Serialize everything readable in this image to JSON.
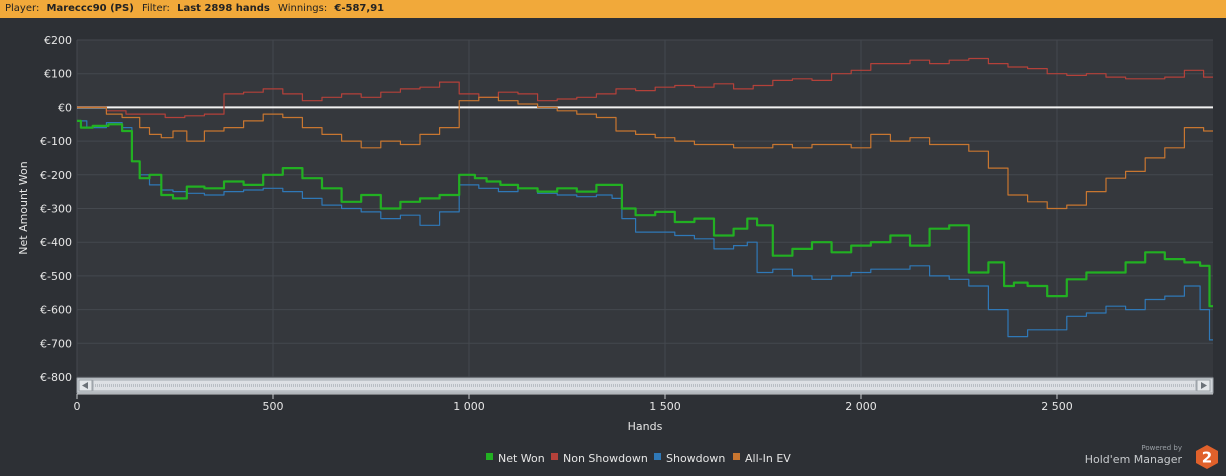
{
  "header": {
    "player_label": "Player:",
    "player_value": "Mareccc90 (PS)",
    "filter_label": "Filter:",
    "filter_value": "Last 2898 hands",
    "winnings_label": "Winnings:",
    "winnings_value": "€-587,91"
  },
  "branding": {
    "powered": "Powered by",
    "name": "Hold'em Manager",
    "badge": "2"
  },
  "colors": {
    "net_won": "#22b022",
    "non_showdown": "#b4413a",
    "showdown": "#2f78b7",
    "all_in_ev": "#c87630",
    "zero_line": "#f2f2f2",
    "grid": "#45494f"
  },
  "chart_data": {
    "type": "line",
    "title": "",
    "xlabel": "Hands",
    "ylabel": "Net Amount Won",
    "xlim": [
      0,
      2898
    ],
    "ylim": [
      -800,
      200
    ],
    "x_ticks": [
      0,
      500,
      1000,
      1500,
      2000,
      2500
    ],
    "x_tick_labels": [
      "0",
      "500",
      "1 000",
      "1 500",
      "2 000",
      "2 500"
    ],
    "y_ticks": [
      200,
      100,
      0,
      -100,
      -200,
      -300,
      -400,
      -500,
      -600,
      -700,
      -800
    ],
    "y_tick_labels": [
      "€200",
      "€100",
      "€0",
      "€-100",
      "€-200",
      "€-300",
      "€-400",
      "€-500",
      "€-600",
      "€-700",
      "€-800"
    ],
    "legend_position": "bottom-center",
    "series": [
      {
        "name": "Net Won",
        "x": [
          0,
          20,
          60,
          100,
          130,
          150,
          170,
          200,
          230,
          260,
          300,
          350,
          400,
          450,
          500,
          550,
          600,
          650,
          700,
          750,
          800,
          850,
          900,
          950,
          1000,
          1030,
          1060,
          1100,
          1150,
          1200,
          1250,
          1300,
          1350,
          1380,
          1400,
          1450,
          1500,
          1550,
          1600,
          1650,
          1700,
          1720,
          1750,
          1800,
          1850,
          1900,
          1950,
          2000,
          2050,
          2100,
          2150,
          2200,
          2250,
          2300,
          2350,
          2380,
          2400,
          2450,
          2500,
          2550,
          2600,
          2650,
          2700,
          2750,
          2800,
          2850,
          2880,
          2898
        ],
        "y": [
          -40,
          -60,
          -55,
          -50,
          -70,
          -160,
          -210,
          -200,
          -260,
          -270,
          -235,
          -240,
          -220,
          -230,
          -200,
          -180,
          -210,
          -240,
          -280,
          -260,
          -300,
          -280,
          -270,
          -260,
          -200,
          -210,
          -220,
          -230,
          -240,
          -250,
          -240,
          -250,
          -230,
          -230,
          -300,
          -320,
          -310,
          -340,
          -330,
          -380,
          -360,
          -330,
          -350,
          -440,
          -420,
          -400,
          -430,
          -410,
          -400,
          -380,
          -410,
          -360,
          -350,
          -490,
          -460,
          -530,
          -520,
          -530,
          -560,
          -510,
          -490,
          -490,
          -460,
          -430,
          -450,
          -460,
          -470,
          -590
        ]
      },
      {
        "name": "Non Showdown",
        "x": [
          0,
          50,
          100,
          150,
          200,
          250,
          300,
          350,
          400,
          450,
          500,
          550,
          600,
          650,
          700,
          750,
          800,
          850,
          900,
          950,
          1000,
          1050,
          1100,
          1150,
          1200,
          1250,
          1300,
          1350,
          1400,
          1450,
          1500,
          1550,
          1600,
          1650,
          1700,
          1750,
          1800,
          1850,
          1900,
          1950,
          2000,
          2050,
          2100,
          2150,
          2200,
          2250,
          2300,
          2350,
          2400,
          2450,
          2500,
          2550,
          2600,
          2650,
          2700,
          2750,
          2800,
          2850,
          2898
        ],
        "y": [
          0,
          0,
          -10,
          -20,
          -20,
          -30,
          -25,
          -20,
          40,
          45,
          55,
          40,
          20,
          30,
          40,
          30,
          45,
          55,
          60,
          75,
          40,
          30,
          45,
          40,
          20,
          25,
          30,
          40,
          55,
          50,
          60,
          65,
          60,
          70,
          55,
          65,
          80,
          85,
          80,
          100,
          110,
          130,
          130,
          140,
          130,
          140,
          145,
          130,
          120,
          115,
          100,
          95,
          100,
          90,
          85,
          85,
          90,
          110,
          90
        ]
      },
      {
        "name": "Showdown",
        "x": [
          0,
          50,
          100,
          130,
          150,
          170,
          200,
          230,
          260,
          300,
          350,
          400,
          450,
          500,
          550,
          600,
          650,
          700,
          750,
          800,
          850,
          900,
          950,
          1000,
          1050,
          1100,
          1150,
          1200,
          1250,
          1300,
          1350,
          1380,
          1400,
          1450,
          1500,
          1550,
          1600,
          1650,
          1700,
          1720,
          1750,
          1800,
          1850,
          1900,
          1950,
          2000,
          2050,
          2100,
          2150,
          2200,
          2250,
          2300,
          2350,
          2400,
          2450,
          2500,
          2550,
          2600,
          2650,
          2700,
          2750,
          2800,
          2850,
          2880,
          2898
        ],
        "y": [
          -40,
          -60,
          -45,
          -60,
          -160,
          -200,
          -230,
          -245,
          -250,
          -255,
          -260,
          -250,
          -245,
          -240,
          -250,
          -270,
          -290,
          -300,
          -310,
          -330,
          -320,
          -350,
          -310,
          -230,
          -240,
          -250,
          -240,
          -255,
          -260,
          -265,
          -260,
          -270,
          -330,
          -370,
          -370,
          -380,
          -390,
          -420,
          -410,
          -400,
          -490,
          -480,
          -500,
          -510,
          -500,
          -490,
          -480,
          -480,
          -470,
          -500,
          -510,
          -530,
          -600,
          -680,
          -660,
          -660,
          -620,
          -610,
          -590,
          -600,
          -570,
          -560,
          -530,
          -600,
          -690
        ]
      },
      {
        "name": "All-In EV",
        "x": [
          0,
          50,
          100,
          130,
          150,
          170,
          200,
          230,
          260,
          300,
          350,
          400,
          450,
          500,
          550,
          600,
          650,
          700,
          750,
          800,
          850,
          900,
          950,
          1000,
          1050,
          1100,
          1150,
          1200,
          1250,
          1300,
          1350,
          1400,
          1450,
          1500,
          1550,
          1600,
          1650,
          1700,
          1750,
          1800,
          1850,
          1900,
          1950,
          2000,
          2050,
          2100,
          2150,
          2200,
          2250,
          2300,
          2350,
          2400,
          2450,
          2500,
          2550,
          2600,
          2650,
          2700,
          2750,
          2800,
          2850,
          2898
        ],
        "y": [
          0,
          0,
          -20,
          -30,
          -30,
          -60,
          -80,
          -90,
          -70,
          -100,
          -70,
          -60,
          -40,
          -20,
          -30,
          -60,
          -80,
          -100,
          -120,
          -100,
          -110,
          -80,
          -60,
          20,
          30,
          20,
          10,
          0,
          -10,
          -20,
          -30,
          -70,
          -80,
          -90,
          -100,
          -110,
          -110,
          -120,
          -120,
          -110,
          -120,
          -110,
          -110,
          -120,
          -80,
          -100,
          -90,
          -110,
          -110,
          -130,
          -180,
          -260,
          -280,
          -300,
          -290,
          -250,
          -210,
          -190,
          -150,
          -120,
          -60,
          -70
        ]
      }
    ]
  }
}
